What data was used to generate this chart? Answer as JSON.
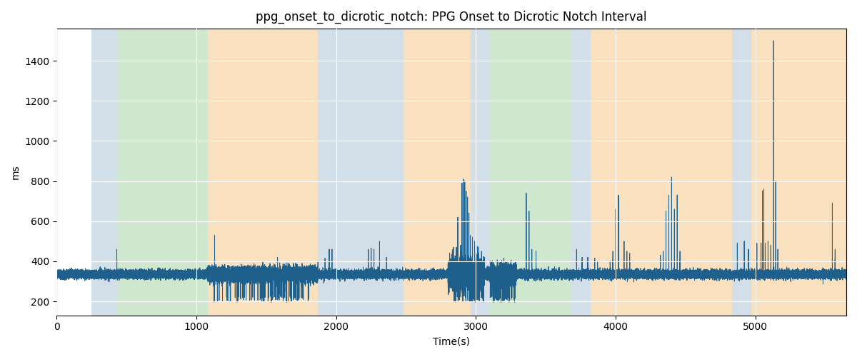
{
  "title": "ppg_onset_to_dicrotic_notch: PPG Onset to Dicrotic Notch Interval",
  "xlabel": "Time(s)",
  "ylabel": "ms",
  "xlim": [
    0,
    5650
  ],
  "ylim": [
    130,
    1560
  ],
  "yticks": [
    200,
    400,
    600,
    800,
    1000,
    1200,
    1400
  ],
  "xticks": [
    0,
    1000,
    2000,
    3000,
    4000,
    5000
  ],
  "background_regions": [
    {
      "xmin": 250,
      "xmax": 430,
      "color": "#aec6d8",
      "alpha": 0.55
    },
    {
      "xmin": 430,
      "xmax": 1080,
      "color": "#a8d4a8",
      "alpha": 0.55
    },
    {
      "xmin": 1080,
      "xmax": 1870,
      "color": "#f5c88a",
      "alpha": 0.55
    },
    {
      "xmin": 1870,
      "xmax": 2480,
      "color": "#aec6d8",
      "alpha": 0.55
    },
    {
      "xmin": 2480,
      "xmax": 2960,
      "color": "#f5c88a",
      "alpha": 0.55
    },
    {
      "xmin": 2960,
      "xmax": 3100,
      "color": "#aec6d8",
      "alpha": 0.55
    },
    {
      "xmin": 3100,
      "xmax": 3680,
      "color": "#a8d4a8",
      "alpha": 0.55
    },
    {
      "xmin": 3680,
      "xmax": 3820,
      "color": "#aec6d8",
      "alpha": 0.55
    },
    {
      "xmin": 3820,
      "xmax": 4830,
      "color": "#f5c88a",
      "alpha": 0.55
    },
    {
      "xmin": 4830,
      "xmax": 4970,
      "color": "#aec6d8",
      "alpha": 0.55
    },
    {
      "xmin": 4970,
      "xmax": 5650,
      "color": "#f5c88a",
      "alpha": 0.55
    }
  ],
  "line_color": "#1f5f8b",
  "line_width": 0.7,
  "grid_color": "white",
  "bg_axes_color": "#ffffff",
  "title_fontsize": 12,
  "label_fontsize": 10,
  "tick_fontsize": 10,
  "baseline": 335,
  "noise_std": 10
}
